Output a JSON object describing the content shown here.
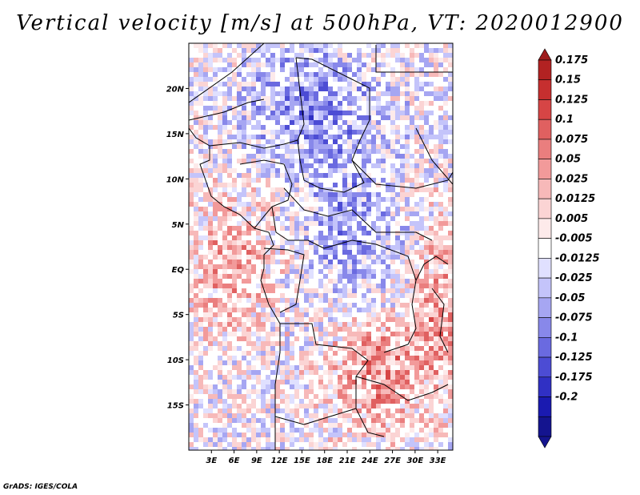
{
  "title": "Vertical velocity [m/s] at 500hPa, VT: 2020012900",
  "credit": "GrADS: IGES/COLA",
  "map": {
    "lon_range": [
      0,
      35
    ],
    "lat_range": [
      -20,
      25
    ],
    "lat_labels": [
      {
        "value": 20,
        "label": "20N"
      },
      {
        "value": 15,
        "label": "15N"
      },
      {
        "value": 10,
        "label": "10N"
      },
      {
        "value": 5,
        "label": "5N"
      },
      {
        "value": 0,
        "label": "EQ"
      },
      {
        "value": -5,
        "label": "5S"
      },
      {
        "value": -10,
        "label": "10S"
      },
      {
        "value": -15,
        "label": "15S"
      }
    ],
    "lon_labels": [
      {
        "value": 3,
        "label": "3E"
      },
      {
        "value": 6,
        "label": "6E"
      },
      {
        "value": 9,
        "label": "9E"
      },
      {
        "value": 12,
        "label": "12E"
      },
      {
        "value": 15,
        "label": "15E"
      },
      {
        "value": 18,
        "label": "18E"
      },
      {
        "value": 21,
        "label": "21E"
      },
      {
        "value": 24,
        "label": "24E"
      },
      {
        "value": 27,
        "label": "27E"
      },
      {
        "value": 30,
        "label": "30E"
      },
      {
        "value": 33,
        "label": "33E"
      }
    ]
  },
  "colorbar": {
    "levels": [
      {
        "label": "0.175",
        "color": "#b22222"
      },
      {
        "label": "0.15",
        "color": "#c62f2f"
      },
      {
        "label": "0.125",
        "color": "#d64545"
      },
      {
        "label": "0.1",
        "color": "#e06060"
      },
      {
        "label": "0.075",
        "color": "#ea7e7e"
      },
      {
        "label": "0.05",
        "color": "#f29a9a"
      },
      {
        "label": "0.025",
        "color": "#f7b9b9"
      },
      {
        "label": "0.0125",
        "color": "#fbd4d4"
      },
      {
        "label": "0.005",
        "color": "#fdeaea"
      },
      {
        "label": "-0.005",
        "color": "#ffffff"
      },
      {
        "label": "-0.0125",
        "color": "#e0e0ff"
      },
      {
        "label": "-0.025",
        "color": "#c4c4fa"
      },
      {
        "label": "-0.05",
        "color": "#a6a6f2"
      },
      {
        "label": "-0.075",
        "color": "#8888ea"
      },
      {
        "label": "-0.1",
        "color": "#6a6ae0"
      },
      {
        "label": "-0.125",
        "color": "#4c4cd4"
      },
      {
        "label": "-0.175",
        "color": "#3030c4"
      },
      {
        "label": "-0.2",
        "color": "#1a1ab0"
      }
    ],
    "top_color": "#9e1b1b",
    "bottom_color": "#14148f"
  }
}
